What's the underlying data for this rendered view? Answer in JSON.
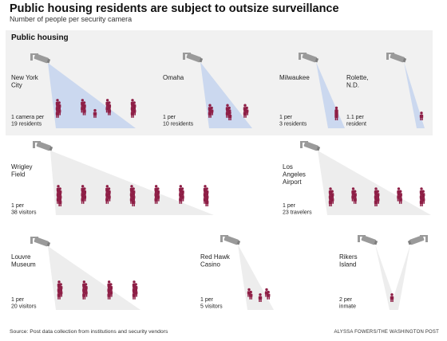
{
  "header": {
    "title": "Public housing residents are subject to outsize surveillance",
    "subtitle": "Number of people per security camera"
  },
  "panel_label": "Public housing",
  "footer": {
    "source": "Source: Post data collection from institutions and security vendors",
    "credit": "ALYSSA FOWERS/THE WASHINGTON POST"
  },
  "colors": {
    "panel_background": "#f1f1f1",
    "public_housing_beam": "#c8d6ee",
    "other_beam": "#ececec",
    "person": "#8e1f46",
    "camera": "#9a9a9a",
    "text": "#222222"
  },
  "chart_data": {
    "type": "pictogram",
    "title": "Public housing residents are subject to outsize surveillance",
    "subtitle": "Number of people per security camera",
    "groups": [
      {
        "name": "Public housing",
        "items": [
          {
            "name": "New York City",
            "cameras": 1,
            "people_per_camera": 19,
            "unit": "residents",
            "rate_label": "1 camera per 19 residents",
            "icons_shown": 19
          },
          {
            "name": "Omaha",
            "cameras": 1,
            "people_per_camera": 10,
            "unit": "residents",
            "rate_label": "1 per 10 residents",
            "icons_shown": 10
          },
          {
            "name": "Milwaukee",
            "cameras": 1,
            "people_per_camera": 3,
            "unit": "residents",
            "rate_label": "1 per 3 residents",
            "icons_shown": 3
          },
          {
            "name": "Rolette, N.D.",
            "cameras": 1,
            "people_per_camera": 1.1,
            "unit": "resident",
            "rate_label": "1.1 per resident",
            "icons_shown": 1
          }
        ]
      },
      {
        "name": "",
        "items": [
          {
            "name": "Wrigley Field",
            "cameras": 1,
            "people_per_camera": 38,
            "unit": "visitors",
            "rate_label": "1 per 38 visitors",
            "icons_shown": 38
          },
          {
            "name": "Los Angeles Airport",
            "cameras": 1,
            "people_per_camera": 23,
            "unit": "travelers",
            "rate_label": "1 per 23 travelers",
            "icons_shown": 23
          },
          {
            "name": "Louvre Museum",
            "cameras": 1,
            "people_per_camera": 20,
            "unit": "visitors",
            "rate_label": "1 per 20 visitors",
            "icons_shown": 20
          },
          {
            "name": "Red Hawk Casino",
            "cameras": 1,
            "people_per_camera": 5,
            "unit": "visitors",
            "rate_label": "1 per 5 visitors",
            "icons_shown": 5
          },
          {
            "name": "Rikers Island",
            "cameras": 2,
            "people_per_inmate": 2,
            "unit": "inmate",
            "rate_label": "2 per inmate",
            "icons_shown": 1
          }
        ]
      }
    ]
  }
}
